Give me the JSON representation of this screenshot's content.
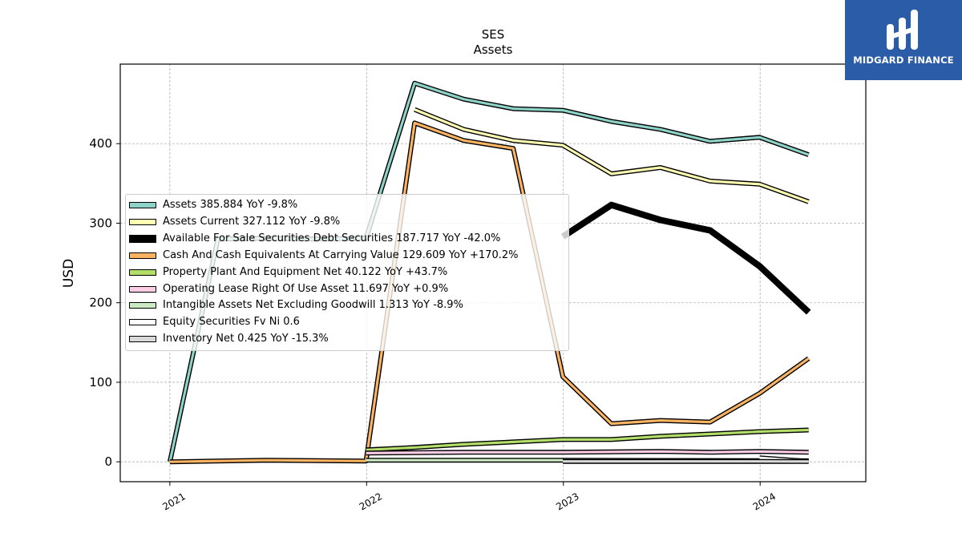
{
  "chart_data": {
    "type": "line",
    "title": "SES",
    "subtitle": "Assets",
    "xlabel": "",
    "ylabel": "USD",
    "xlim": [
      "2020-10-01",
      "2024-07-15"
    ],
    "ylim": [
      -25,
      500
    ],
    "x_ticks": [
      "2021",
      "2022",
      "2023",
      "2024"
    ],
    "y_ticks": [
      0,
      100,
      200,
      300,
      400
    ],
    "grid": true,
    "legend_position": "center-left",
    "series": [
      {
        "name": "Assets",
        "legend": "Assets  385.884 YoY -9.8%",
        "color": "#8dd3c7",
        "width": "normal",
        "points": [
          [
            "2021-01-01",
            0
          ],
          [
            "2021-03-31",
            280
          ],
          [
            "2021-06-30",
            281
          ],
          [
            "2021-09-30",
            280
          ],
          [
            "2021-12-31",
            281
          ],
          [
            "2022-03-31",
            476
          ],
          [
            "2022-06-30",
            456
          ],
          [
            "2022-09-30",
            444
          ],
          [
            "2022-12-31",
            442
          ],
          [
            "2023-03-31",
            428
          ],
          [
            "2023-06-30",
            418
          ],
          [
            "2023-09-30",
            403
          ],
          [
            "2023-12-31",
            408
          ],
          [
            "2024-03-31",
            386
          ]
        ]
      },
      {
        "name": "Assets Current",
        "legend": "Assets Current  327.112 YoY -9.8%",
        "color": "#ffffb3",
        "width": "normal",
        "points": [
          [
            "2022-03-31",
            443
          ],
          [
            "2022-06-30",
            418
          ],
          [
            "2022-09-30",
            404
          ],
          [
            "2022-12-31",
            398
          ],
          [
            "2023-03-31",
            362
          ],
          [
            "2023-06-30",
            370
          ],
          [
            "2023-09-30",
            353
          ],
          [
            "2023-12-31",
            349
          ],
          [
            "2024-03-31",
            327
          ]
        ]
      },
      {
        "name": "Available For Sale Securities Debt Securities",
        "legend": "Available For Sale Securities Debt Securities  187.717 YoY -42.0%",
        "color": "#000000",
        "width": "thick",
        "points": [
          [
            "2022-12-31",
            283
          ],
          [
            "2023-03-31",
            323
          ],
          [
            "2023-06-30",
            304
          ],
          [
            "2023-09-30",
            291
          ],
          [
            "2023-12-31",
            246
          ],
          [
            "2024-03-31",
            188
          ]
        ]
      },
      {
        "name": "Cash And Cash Equivalents At Carrying Value",
        "legend": "Cash And Cash Equivalents At Carrying Value  129.609 YoY +170.2%",
        "color": "#fdb462",
        "width": "normal",
        "points": [
          [
            "2021-01-01",
            0
          ],
          [
            "2021-06-30",
            2
          ],
          [
            "2021-12-31",
            1
          ],
          [
            "2022-03-31",
            426
          ],
          [
            "2022-06-30",
            404
          ],
          [
            "2022-09-30",
            394
          ],
          [
            "2022-12-31",
            107
          ],
          [
            "2023-03-31",
            48
          ],
          [
            "2023-06-30",
            52
          ],
          [
            "2023-09-30",
            50
          ],
          [
            "2023-12-31",
            86
          ],
          [
            "2024-03-31",
            130
          ]
        ]
      },
      {
        "name": "Property Plant And Equipment Net",
        "legend": "Property Plant And Equipment Net  40.122 YoY +43.7%",
        "color": "#b3de69",
        "width": "normal",
        "points": [
          [
            "2021-12-31",
            15
          ],
          [
            "2022-03-31",
            18
          ],
          [
            "2022-06-30",
            22
          ],
          [
            "2022-09-30",
            25
          ],
          [
            "2022-12-31",
            28
          ],
          [
            "2023-03-31",
            28
          ],
          [
            "2023-06-30",
            32
          ],
          [
            "2023-09-30",
            35
          ],
          [
            "2023-12-31",
            38
          ],
          [
            "2024-03-31",
            40
          ]
        ]
      },
      {
        "name": "Operating Lease Right Of Use Asset",
        "legend": "Operating Lease Right Of Use Asset  11.697 YoY +0.9%",
        "color": "#fccde5",
        "width": "normal",
        "points": [
          [
            "2021-12-31",
            11
          ],
          [
            "2022-06-30",
            12
          ],
          [
            "2022-12-31",
            12
          ],
          [
            "2023-06-30",
            13
          ],
          [
            "2023-09-30",
            12
          ],
          [
            "2023-12-31",
            13
          ],
          [
            "2024-03-31",
            12
          ]
        ]
      },
      {
        "name": "Intangible Assets Net Excluding Goodwill",
        "legend": "Intangible Assets Net Excluding Goodwill  1.313 YoY -8.9%",
        "color": "#ccebc5",
        "width": "normal",
        "points": [
          [
            "2021-12-31",
            2
          ],
          [
            "2022-12-31",
            2
          ],
          [
            "2023-12-31",
            1.5
          ],
          [
            "2024-03-31",
            1.3
          ]
        ]
      },
      {
        "name": "Equity Securities Fv Ni",
        "legend": "Equity Securities Fv Ni  0.6",
        "color": "#ffffff",
        "width": "normal",
        "points": [
          [
            "2023-12-31",
            5
          ],
          [
            "2024-03-31",
            0.6
          ]
        ]
      },
      {
        "name": "Inventory Net",
        "legend": "Inventory Net  0.425 YoY -15.3%",
        "color": "#d9d9d9",
        "width": "normal",
        "points": [
          [
            "2022-12-31",
            0.5
          ],
          [
            "2023-12-31",
            0.5
          ],
          [
            "2024-03-31",
            0.4
          ]
        ]
      }
    ]
  },
  "logo": {
    "text": "MIDGARD FINANCE"
  }
}
